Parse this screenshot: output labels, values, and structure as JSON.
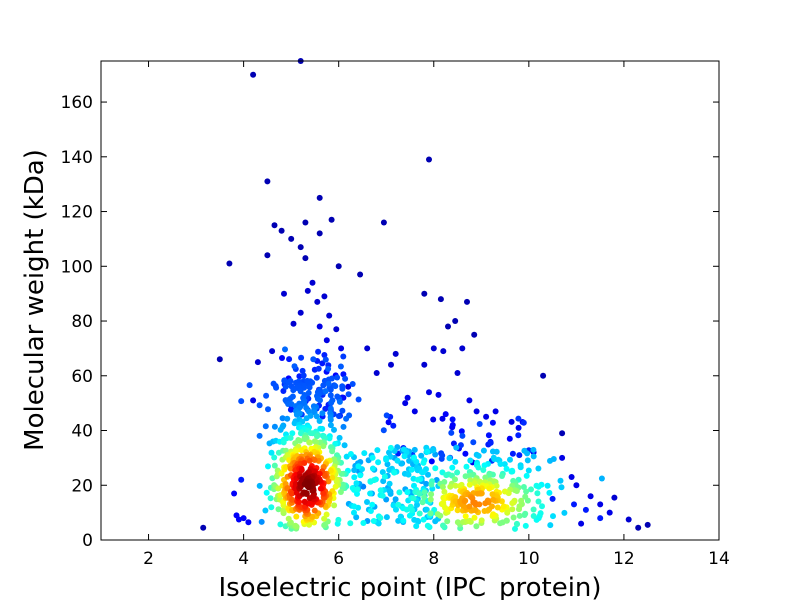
{
  "chart_data": {
    "type": "scatter",
    "xlabel": "Isoelectric point (IPC_protein)",
    "ylabel": "Molecular weight (kDa)",
    "xlim": [
      1,
      14
    ],
    "ylim": [
      0,
      175
    ],
    "xticks": [
      2,
      4,
      6,
      8,
      10,
      12,
      14
    ],
    "yticks": [
      0,
      20,
      40,
      60,
      80,
      100,
      120,
      140,
      160
    ],
    "xtick_labels": [
      "2",
      "4",
      "6",
      "8",
      "10",
      "12",
      "14"
    ],
    "ytick_labels": [
      "0",
      "20",
      "40",
      "60",
      "80",
      "100",
      "120",
      "140",
      "160"
    ],
    "grid": false,
    "legend": "none",
    "colormap": "jet (density)",
    "colors": {
      "low_density": "#0000bf",
      "mid_low": "#00bfff",
      "mid": "#7fff7f",
      "mid_high": "#ffbf00",
      "high_density": "#bf0000"
    },
    "points": [
      {
        "x": 3.15,
        "y": 4.5,
        "d": 0.05
      },
      {
        "x": 3.5,
        "y": 66,
        "d": 0.05
      },
      {
        "x": 3.7,
        "y": 101,
        "d": 0.05
      },
      {
        "x": 4.2,
        "y": 170,
        "d": 0.05
      },
      {
        "x": 5.2,
        "y": 175,
        "d": 0.05
      },
      {
        "x": 4.5,
        "y": 131,
        "d": 0.05
      },
      {
        "x": 4.65,
        "y": 115,
        "d": 0.05
      },
      {
        "x": 4.8,
        "y": 113,
        "d": 0.05
      },
      {
        "x": 4.5,
        "y": 104,
        "d": 0.05
      },
      {
        "x": 5.0,
        "y": 110,
        "d": 0.05
      },
      {
        "x": 5.3,
        "y": 116,
        "d": 0.05
      },
      {
        "x": 5.6,
        "y": 125,
        "d": 0.05
      },
      {
        "x": 5.6,
        "y": 112,
        "d": 0.05
      },
      {
        "x": 5.85,
        "y": 117,
        "d": 0.05
      },
      {
        "x": 5.2,
        "y": 107,
        "d": 0.05
      },
      {
        "x": 5.3,
        "y": 103,
        "d": 0.05
      },
      {
        "x": 6.0,
        "y": 100,
        "d": 0.05
      },
      {
        "x": 6.45,
        "y": 97,
        "d": 0.05
      },
      {
        "x": 6.95,
        "y": 116,
        "d": 0.05
      },
      {
        "x": 7.9,
        "y": 139,
        "d": 0.05
      },
      {
        "x": 7.8,
        "y": 90,
        "d": 0.05
      },
      {
        "x": 8.15,
        "y": 88,
        "d": 0.05
      },
      {
        "x": 8.7,
        "y": 87,
        "d": 0.05
      },
      {
        "x": 8.45,
        "y": 80,
        "d": 0.05
      },
      {
        "x": 8.85,
        "y": 75,
        "d": 0.05
      },
      {
        "x": 8.3,
        "y": 78,
        "d": 0.05
      },
      {
        "x": 10.3,
        "y": 60,
        "d": 0.05
      },
      {
        "x": 10.7,
        "y": 39,
        "d": 0.05
      },
      {
        "x": 12.5,
        "y": 5.5,
        "d": 0.05
      },
      {
        "x": 12.3,
        "y": 4.5,
        "d": 0.05
      },
      {
        "x": 12.1,
        "y": 7.5,
        "d": 0.08
      },
      {
        "x": 11.8,
        "y": 15.5,
        "d": 0.08
      },
      {
        "x": 11.7,
        "y": 10,
        "d": 0.1
      },
      {
        "x": 11.5,
        "y": 13,
        "d": 0.1
      },
      {
        "x": 11.3,
        "y": 16,
        "d": 0.1
      },
      {
        "x": 11.1,
        "y": 6,
        "d": 0.1
      },
      {
        "x": 11.0,
        "y": 20,
        "d": 0.1
      },
      {
        "x": 10.9,
        "y": 23,
        "d": 0.1
      },
      {
        "x": 10.7,
        "y": 30,
        "d": 0.1
      },
      {
        "x": 6.6,
        "y": 70,
        "d": 0.08
      },
      {
        "x": 6.8,
        "y": 61,
        "d": 0.08
      },
      {
        "x": 7.2,
        "y": 68,
        "d": 0.08
      },
      {
        "x": 7.1,
        "y": 64,
        "d": 0.08
      },
      {
        "x": 7.8,
        "y": 64,
        "d": 0.08
      },
      {
        "x": 8.0,
        "y": 70,
        "d": 0.08
      },
      {
        "x": 8.6,
        "y": 70,
        "d": 0.08
      },
      {
        "x": 8.2,
        "y": 69,
        "d": 0.08
      },
      {
        "x": 8.5,
        "y": 61,
        "d": 0.08
      },
      {
        "x": 4.3,
        "y": 65,
        "d": 0.08
      },
      {
        "x": 4.6,
        "y": 69,
        "d": 0.08
      },
      {
        "x": 4.2,
        "y": 51,
        "d": 0.1
      },
      {
        "x": 4.85,
        "y": 90,
        "d": 0.08
      },
      {
        "x": 5.2,
        "y": 83,
        "d": 0.08
      },
      {
        "x": 5.35,
        "y": 91,
        "d": 0.08
      },
      {
        "x": 5.45,
        "y": 94,
        "d": 0.08
      },
      {
        "x": 5.55,
        "y": 87,
        "d": 0.08
      },
      {
        "x": 5.7,
        "y": 89,
        "d": 0.08
      },
      {
        "x": 5.05,
        "y": 79,
        "d": 0.08
      },
      {
        "x": 5.8,
        "y": 82,
        "d": 0.08
      },
      {
        "x": 5.95,
        "y": 77,
        "d": 0.08
      },
      {
        "x": 5.6,
        "y": 78,
        "d": 0.1
      },
      {
        "x": 5.75,
        "y": 73,
        "d": 0.1
      },
      {
        "x": 6.05,
        "y": 70,
        "d": 0.1
      },
      {
        "x": 6.2,
        "y": 56,
        "d": 0.1
      },
      {
        "x": 6.1,
        "y": 52,
        "d": 0.12
      },
      {
        "x": 3.8,
        "y": 17,
        "d": 0.12
      },
      {
        "x": 3.85,
        "y": 9,
        "d": 0.12
      },
      {
        "x": 3.9,
        "y": 7.5,
        "d": 0.12
      },
      {
        "x": 4.0,
        "y": 8,
        "d": 0.12
      },
      {
        "x": 4.1,
        "y": 6.5,
        "d": 0.12
      },
      {
        "x": 3.95,
        "y": 22,
        "d": 0.15
      },
      {
        "x": 10.5,
        "y": 15,
        "d": 0.15
      },
      {
        "x": 10.1,
        "y": 32,
        "d": 0.12
      },
      {
        "x": 9.6,
        "y": 37,
        "d": 0.12
      },
      {
        "x": 9.8,
        "y": 31,
        "d": 0.15
      },
      {
        "x": 9.3,
        "y": 47,
        "d": 0.1
      },
      {
        "x": 9.1,
        "y": 45,
        "d": 0.1
      },
      {
        "x": 8.9,
        "y": 47,
        "d": 0.1
      },
      {
        "x": 7.4,
        "y": 50,
        "d": 0.1
      },
      {
        "x": 7.6,
        "y": 47,
        "d": 0.1
      },
      {
        "x": 7.45,
        "y": 52,
        "d": 0.1
      },
      {
        "x": 7.05,
        "y": 43,
        "d": 0.12
      },
      {
        "x": 8.1,
        "y": 53,
        "d": 0.1
      },
      {
        "x": 7.9,
        "y": 54,
        "d": 0.1
      },
      {
        "x": 8.25,
        "y": 46,
        "d": 0.12
      },
      {
        "x": 8.4,
        "y": 42,
        "d": 0.12
      },
      {
        "x": 8.75,
        "y": 51,
        "d": 0.1
      },
      {
        "x": 11.5,
        "y": 8,
        "d": 0.15
      },
      {
        "x": 11.2,
        "y": 11,
        "d": 0.15
      },
      {
        "x": 10.95,
        "y": 13,
        "d": 0.15
      }
    ]
  }
}
